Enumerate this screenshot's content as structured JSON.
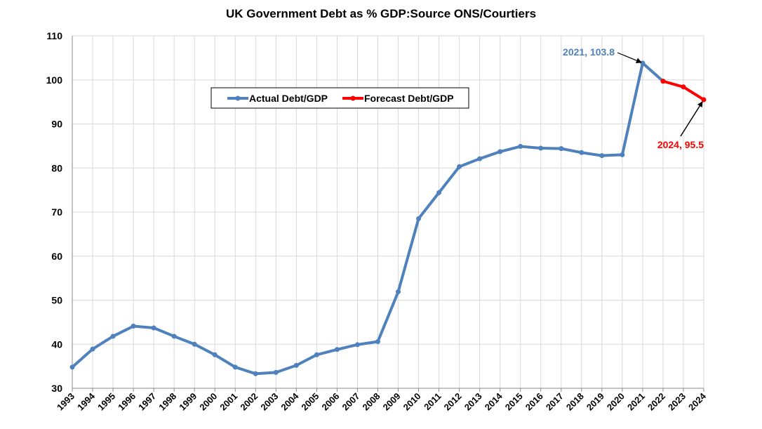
{
  "chart_data": {
    "type": "line",
    "title": "UK Government Debt as % GDP:Source ONS/Courtiers",
    "xlabel": "",
    "ylabel": "",
    "ylim": [
      30,
      110
    ],
    "yticks": [
      30,
      40,
      50,
      60,
      70,
      80,
      90,
      100,
      110
    ],
    "grid": true,
    "legend_position": "upper-left-center",
    "categories": [
      "1993",
      "1994",
      "1995",
      "1996",
      "1997",
      "1998",
      "1999",
      "2000",
      "2001",
      "2002",
      "2003",
      "2004",
      "2005",
      "2006",
      "2007",
      "2008",
      "2009",
      "2010",
      "2011",
      "2012",
      "2013",
      "2014",
      "2015",
      "2016",
      "2017",
      "2018",
      "2019",
      "2020",
      "2021",
      "2022",
      "2023",
      "2024"
    ],
    "series": [
      {
        "name": "Actual Debt/GDP",
        "color": "#4f81bd",
        "x": [
          "1993",
          "1994",
          "1995",
          "1996",
          "1997",
          "1998",
          "1999",
          "2000",
          "2001",
          "2002",
          "2003",
          "2004",
          "2005",
          "2006",
          "2007",
          "2008",
          "2009",
          "2010",
          "2011",
          "2012",
          "2013",
          "2014",
          "2015",
          "2016",
          "2017",
          "2018",
          "2019",
          "2020",
          "2021",
          "2022"
        ],
        "values": [
          34.8,
          38.9,
          41.8,
          44.1,
          43.7,
          41.8,
          40.0,
          37.6,
          34.8,
          33.3,
          33.6,
          35.2,
          37.6,
          38.8,
          39.9,
          40.6,
          51.9,
          68.5,
          74.4,
          80.3,
          82.1,
          83.7,
          84.9,
          84.5,
          84.4,
          83.5,
          82.8,
          83.0,
          103.8,
          99.7
        ]
      },
      {
        "name": "Forecast Debt/GDP",
        "color": "#ff0000",
        "x": [
          "2022",
          "2023",
          "2024"
        ],
        "values": [
          99.7,
          98.4,
          95.5
        ]
      }
    ],
    "annotations": [
      {
        "text": "2021, 103.8",
        "x": "2021",
        "y": 103.8,
        "color": "#4f81bd"
      },
      {
        "text": "2024, 95.5",
        "x": "2024",
        "y": 95.5,
        "color": "#ff0000"
      }
    ]
  }
}
